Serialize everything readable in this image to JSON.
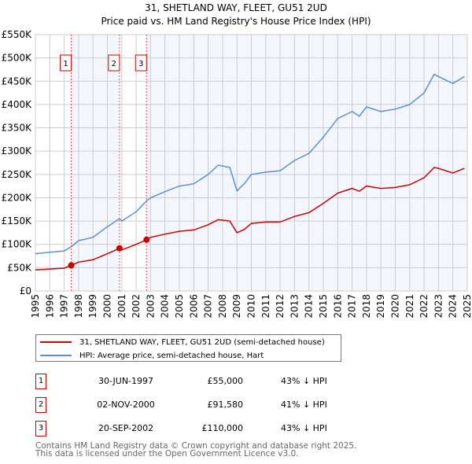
{
  "chart_data": {
    "type": "line",
    "title": "31, SHETLAND WAY, FLEET, GU51 2UD",
    "subtitle": "Price paid vs. HM Land Registry's House Price Index (HPI)",
    "xlim": [
      1995,
      2025
    ],
    "ylim": [
      0,
      550000
    ],
    "y_ticks": [
      {
        "value": 0,
        "label": "£0"
      },
      {
        "value": 50000,
        "label": "£50K"
      },
      {
        "value": 100000,
        "label": "£100K"
      },
      {
        "value": 150000,
        "label": "£150K"
      },
      {
        "value": 200000,
        "label": "£200K"
      },
      {
        "value": 250000,
        "label": "£250K"
      },
      {
        "value": 300000,
        "label": "£300K"
      },
      {
        "value": 350000,
        "label": "£350K"
      },
      {
        "value": 400000,
        "label": "£400K"
      },
      {
        "value": 450000,
        "label": "£450K"
      },
      {
        "value": 500000,
        "label": "£500K"
      },
      {
        "value": 550000,
        "label": "£550K"
      }
    ],
    "x_ticks": [
      "1995",
      "1996",
      "1997",
      "1998",
      "1999",
      "2000",
      "2001",
      "2002",
      "2003",
      "2004",
      "2005",
      "2006",
      "2007",
      "2008",
      "2009",
      "2010",
      "2011",
      "2012",
      "2013",
      "2014",
      "2015",
      "2016",
      "2017",
      "2018",
      "2019",
      "2020",
      "2021",
      "2022",
      "2023",
      "2024",
      "2025"
    ],
    "grid": true,
    "series": [
      {
        "name": "31, SHETLAND WAY, FLEET, GU51 2UD (semi-detached house)",
        "color": "#cc0000",
        "x": [
          1995,
          1996,
          1997,
          1997.49,
          1998,
          1999,
          2000,
          2000.84,
          2001,
          2002,
          2002.72,
          2003,
          2004,
          2005,
          2006,
          2007,
          2007.7,
          2008.5,
          2009.0,
          2009.5,
          2010,
          2011,
          2012,
          2013,
          2014,
          2015,
          2016,
          2017,
          2017.5,
          2018,
          2019,
          2020,
          2021,
          2022,
          2022.7,
          2023,
          2024,
          2024.8
        ],
        "y": [
          45000,
          47000,
          49000,
          55000,
          62000,
          67000,
          80000,
          91580,
          88000,
          100000,
          110000,
          115000,
          122000,
          128000,
          131000,
          142000,
          153000,
          150000,
          125000,
          132000,
          145000,
          148000,
          148000,
          160000,
          168000,
          188000,
          210000,
          220000,
          214000,
          225000,
          220000,
          222000,
          228000,
          243000,
          265000,
          263000,
          253000,
          263000
        ]
      },
      {
        "name": "HPI: Average price, semi-detached house, Hart",
        "color": "#5b8fd6",
        "x": [
          1995,
          1996,
          1997,
          1997.49,
          1998,
          1999,
          2000,
          2000.84,
          2001,
          2002,
          2002.72,
          2003,
          2004,
          2005,
          2006,
          2007,
          2007.7,
          2008.5,
          2009.0,
          2009.5,
          2010,
          2011,
          2012,
          2013,
          2014,
          2015,
          2016,
          2017,
          2017.5,
          2018,
          2019,
          2020,
          2021,
          2022,
          2022.7,
          2023,
          2024,
          2024.8
        ],
        "y": [
          80000,
          83000,
          86000,
          95000,
          108000,
          115000,
          138000,
          155000,
          150000,
          170000,
          193000,
          200000,
          213000,
          225000,
          230000,
          250000,
          270000,
          265000,
          215000,
          230000,
          250000,
          255000,
          258000,
          280000,
          295000,
          330000,
          370000,
          385000,
          375000,
          395000,
          385000,
          390000,
          400000,
          425000,
          465000,
          460000,
          445000,
          460000
        ]
      }
    ],
    "sales": [
      {
        "id": "1",
        "x": 1997.49,
        "price": 55000,
        "date": "30-JUN-1997",
        "price_label": "£55,000",
        "hpi_diff": "43% ↓ HPI"
      },
      {
        "id": "2",
        "x": 2000.84,
        "price": 91580,
        "date": "02-NOV-2000",
        "price_label": "£91,580",
        "hpi_diff": "41% ↓ HPI"
      },
      {
        "id": "3",
        "x": 2002.72,
        "price": 110000,
        "date": "20-SEP-2002",
        "price_label": "£110,000",
        "hpi_diff": "43% ↓ HPI"
      }
    ],
    "legend_placement": "below"
  },
  "footer": {
    "line1": "Contains HM Land Registry data © Crown copyright and database right 2025.",
    "line2": "This data is licensed under the Open Government Licence v3.0."
  }
}
